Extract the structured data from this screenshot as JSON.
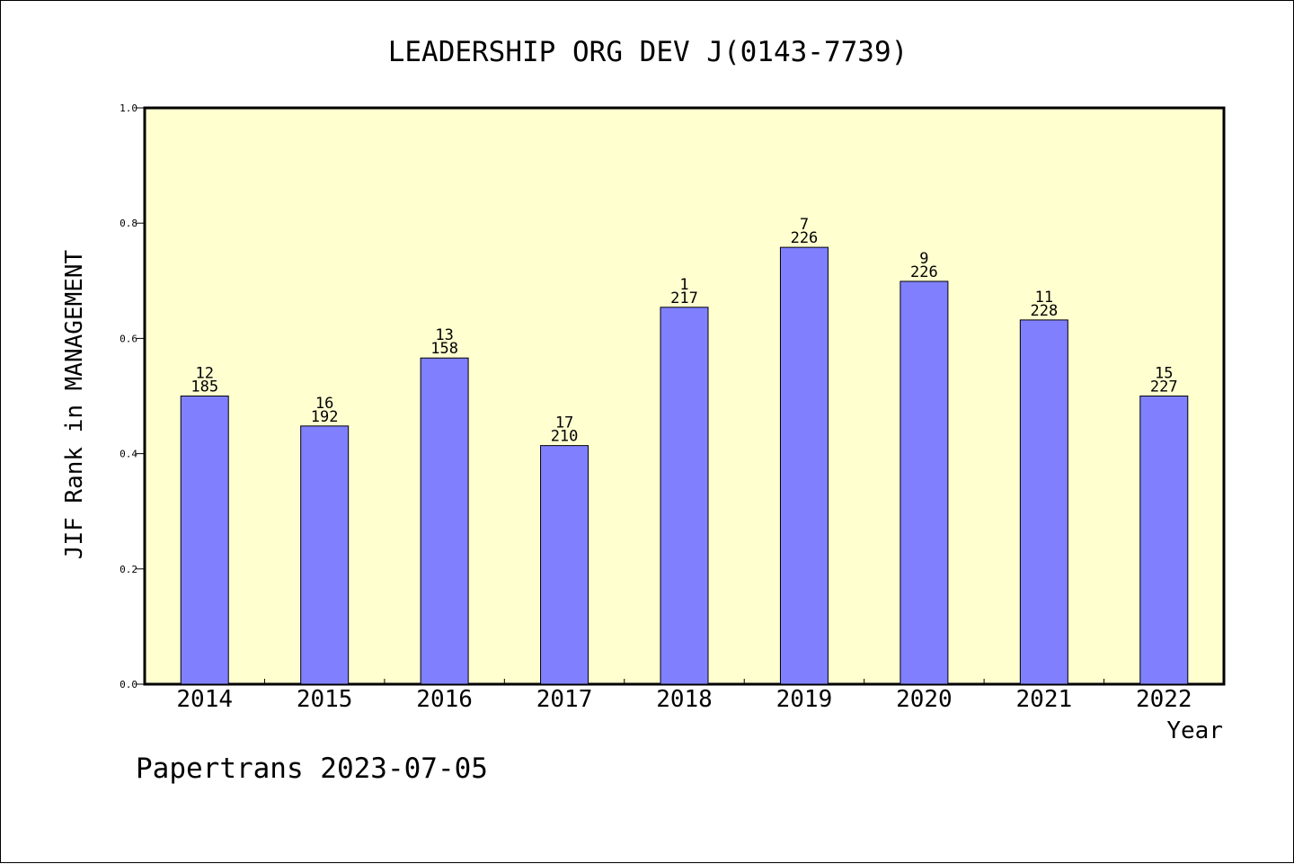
{
  "chart_data": {
    "type": "bar",
    "title": "LEADERSHIP ORG DEV J(0143-7739)",
    "xlabel": "Year",
    "ylabel": "JIF Rank in MANAGEMENT",
    "ylim": [
      0.0,
      1.0
    ],
    "yticks": [
      "0.0",
      "0.2",
      "0.4",
      "0.6",
      "0.8",
      "1.0"
    ],
    "categories": [
      "2014",
      "2015",
      "2016",
      "2017",
      "2018",
      "2019",
      "2020",
      "2021",
      "2022"
    ],
    "values": [
      0.5,
      0.448,
      0.566,
      0.414,
      0.654,
      0.758,
      0.699,
      0.632,
      0.5
    ],
    "ranks": [
      "12",
      "16",
      "13",
      "17",
      "1",
      "7",
      "9",
      "11",
      "15"
    ],
    "totals": [
      "185",
      "192",
      "158",
      "210",
      "217",
      "226",
      "226",
      "228",
      "227"
    ],
    "grid": false,
    "colors": {
      "bar": "#8080ff",
      "plot_background": "#ffffd0"
    }
  },
  "footer": "Papertrans 2023-07-05"
}
